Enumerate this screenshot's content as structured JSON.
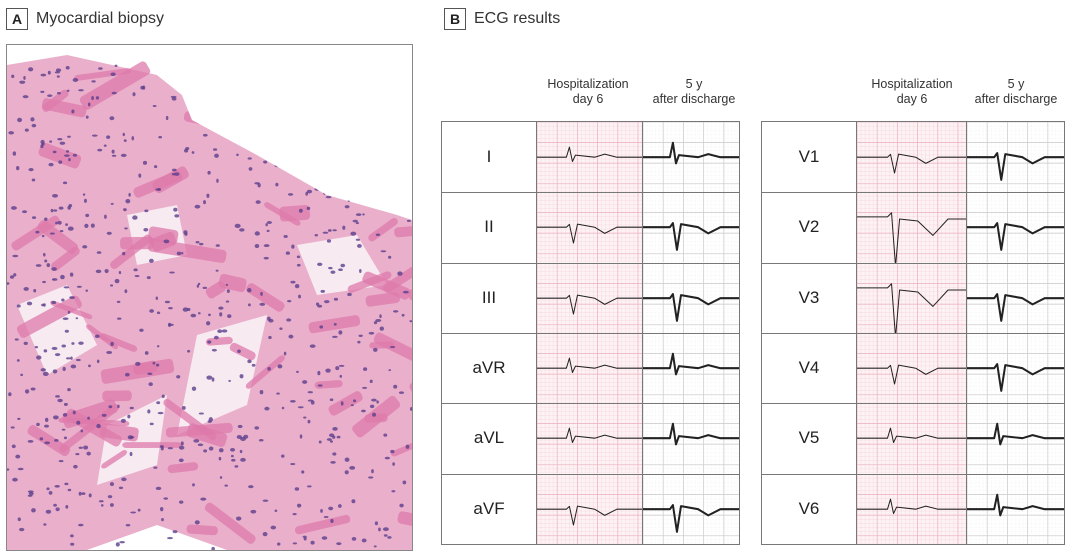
{
  "panelA": {
    "letter": "A",
    "title": "Myocardial biopsy"
  },
  "panelB": {
    "letter": "B",
    "title": "ECG results"
  },
  "columns": {
    "hosp_line1": "Hospitalization",
    "hosp_line2": "day 6",
    "after_line1": "5 y",
    "after_line2": "after discharge"
  },
  "limb_leads": [
    "I",
    "II",
    "III",
    "aVR",
    "aVL",
    "aVF"
  ],
  "chest_leads": [
    "V1",
    "V2",
    "V3",
    "V4",
    "V5",
    "V6"
  ],
  "colors": {
    "ecg_grid_pink": "#f3c9d2",
    "ecg_grid_fine": "#f8e1e6",
    "trace": "#222222",
    "tissue_pink": "#e38fb5",
    "nuclei_purple": "#5b3f8c"
  }
}
